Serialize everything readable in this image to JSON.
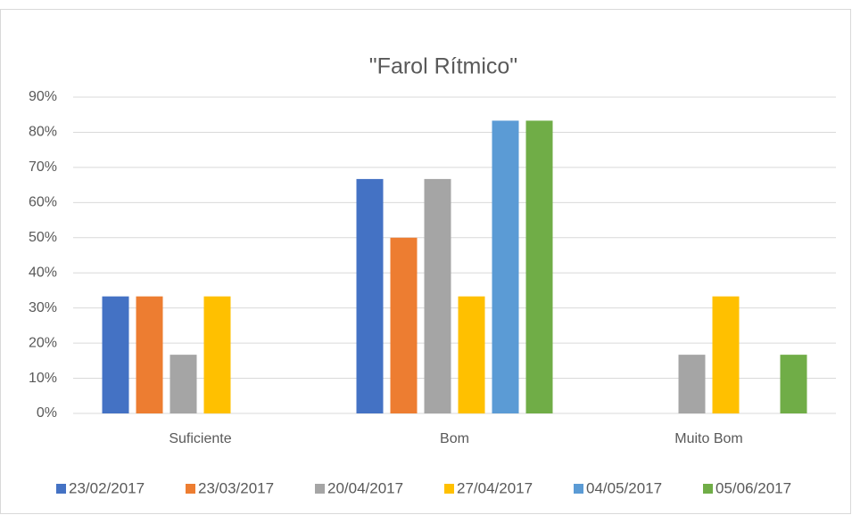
{
  "chart_data": {
    "type": "bar",
    "title": "\"Farol Rítmico\"",
    "categories": [
      "Suficiente",
      "Bom",
      "Muito Bom"
    ],
    "series": [
      {
        "name": "23/02/2017",
        "color": "#4472c4",
        "values": [
          33.3,
          66.7,
          0
        ]
      },
      {
        "name": "23/03/2017",
        "color": "#ed7d31",
        "values": [
          33.3,
          50,
          0
        ]
      },
      {
        "name": "20/04/2017",
        "color": "#a5a5a5",
        "values": [
          16.7,
          66.7,
          16.7
        ]
      },
      {
        "name": "27/04/2017",
        "color": "#ffc000",
        "values": [
          33.3,
          33.3,
          33.3
        ]
      },
      {
        "name": "04/05/2017",
        "color": "#5b9bd5",
        "values": [
          0,
          83.3,
          0
        ]
      },
      {
        "name": "05/06/2017",
        "color": "#70ad47",
        "values": [
          0,
          83.3,
          16.7
        ]
      }
    ],
    "ylim": [
      0,
      90
    ],
    "yticks": [
      {
        "value": 0,
        "label": "0%"
      },
      {
        "value": 10,
        "label": "10%"
      },
      {
        "value": 20,
        "label": "20%"
      },
      {
        "value": 30,
        "label": "30%"
      },
      {
        "value": 40,
        "label": "40%"
      },
      {
        "value": 50,
        "label": "50%"
      },
      {
        "value": 60,
        "label": "60%"
      },
      {
        "value": 70,
        "label": "70%"
      },
      {
        "value": 80,
        "label": "80%"
      },
      {
        "value": 90,
        "label": "90%"
      }
    ],
    "grid": true,
    "legend": "bottom"
  }
}
